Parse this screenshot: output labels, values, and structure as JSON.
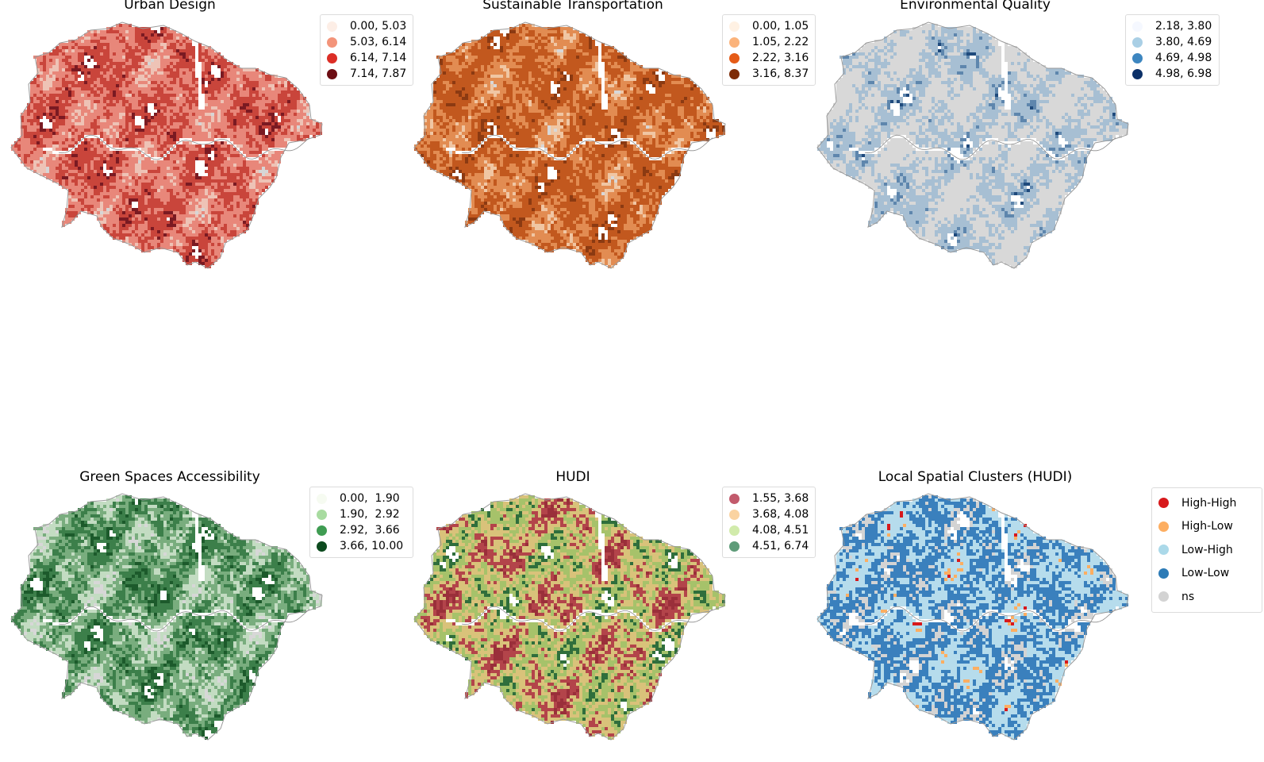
{
  "maps": [
    {
      "title": "Urban Design",
      "legend": [
        {
          "label": "0.00, 5.03",
          "color": "#fdeee6"
        },
        {
          "label": "5.03, 6.14",
          "color": "#f3947a"
        },
        {
          "label": "6.14, 7.14",
          "color": "#dc2e26"
        },
        {
          "label": "7.14, 7.87",
          "color": "#6c0d13"
        }
      ],
      "palette": [
        "#d6d6d6",
        "#eec3b6",
        "#e8877a",
        "#c9453b",
        "#7a1a22"
      ],
      "weights": [
        0.12,
        0.18,
        0.26,
        0.26,
        0.18
      ]
    },
    {
      "title": "Sustainable Transportation",
      "legend": [
        {
          "label": "0.00, 1.05",
          "color": "#fff1e3"
        },
        {
          "label": "1.05, 2.22",
          "color": "#fbb37b"
        },
        {
          "label": "2.22, 3.16",
          "color": "#e55b17"
        },
        {
          "label": "3.16, 8.37",
          "color": "#7d2b06"
        }
      ],
      "palette": [
        "#d8d8d8",
        "#f0c6a3",
        "#e28c52",
        "#c2581e",
        "#8b3a12"
      ],
      "weights": [
        0.14,
        0.14,
        0.22,
        0.32,
        0.18
      ]
    },
    {
      "title": "Environmental Quality",
      "legend": [
        {
          "label": "2.18, 3.80",
          "color": "#f5f8ff"
        },
        {
          "label": "3.80, 4.69",
          "color": "#a9cfe5"
        },
        {
          "label": "4.69, 4.98",
          "color": "#3d86c0"
        },
        {
          "label": "4.98, 6.98",
          "color": "#0c3068"
        }
      ],
      "palette": [
        "#d8d8d8",
        "#d8d8d8",
        "#a7bfd3",
        "#5e86ad",
        "#1f4a7c"
      ],
      "weights": [
        0.3,
        0.25,
        0.28,
        0.1,
        0.07
      ]
    },
    {
      "title": "Green Spaces Accessibility",
      "legend": [
        {
          "label": "0.00,  1.90",
          "color": "#f6fbf1"
        },
        {
          "label": "1.90,  2.92",
          "color": "#a8dba0"
        },
        {
          "label": "2.92,  3.66",
          "color": "#3f9c52"
        },
        {
          "label": "3.66, 10.00",
          "color": "#0c4a1e"
        }
      ],
      "palette": [
        "#d7d7d7",
        "#c3dcc2",
        "#79ad7e",
        "#3c7f4a",
        "#1c5a2b"
      ],
      "weights": [
        0.22,
        0.2,
        0.18,
        0.2,
        0.2
      ]
    },
    {
      "title": "HUDI",
      "legend": [
        {
          "label": "1.55, 3.68",
          "color": "#c25a6c"
        },
        {
          "label": "3.68, 4.08",
          "color": "#fad3a1"
        },
        {
          "label": "4.08, 4.51",
          "color": "#d1ebab"
        },
        {
          "label": "4.51, 6.74",
          "color": "#5e9c79"
        }
      ],
      "palette": [
        "#9a2f3a",
        "#b3444a",
        "#d9c27a",
        "#a6c26a",
        "#2f6e3c"
      ],
      "weights": [
        0.26,
        0.16,
        0.18,
        0.18,
        0.22
      ]
    },
    {
      "title": "Local Spatial Clusters (HUDI)",
      "legend": [
        {
          "label": "High-High",
          "color": "#d7191c"
        },
        {
          "label": "High-Low",
          "color": "#fdae61"
        },
        {
          "label": "Low-High",
          "color": "#abd9e9"
        },
        {
          "label": "Low-Low",
          "color": "#2c7bb6"
        },
        {
          "label": "ns",
          "color": "#d3d3d3"
        }
      ],
      "palette": [
        "#d7191c",
        "#fdae61",
        "#b6dcec",
        "#3a80bd",
        "#d3d3d3"
      ],
      "weights": [
        0.14,
        0.06,
        0.3,
        0.26,
        0.24
      ]
    }
  ]
}
